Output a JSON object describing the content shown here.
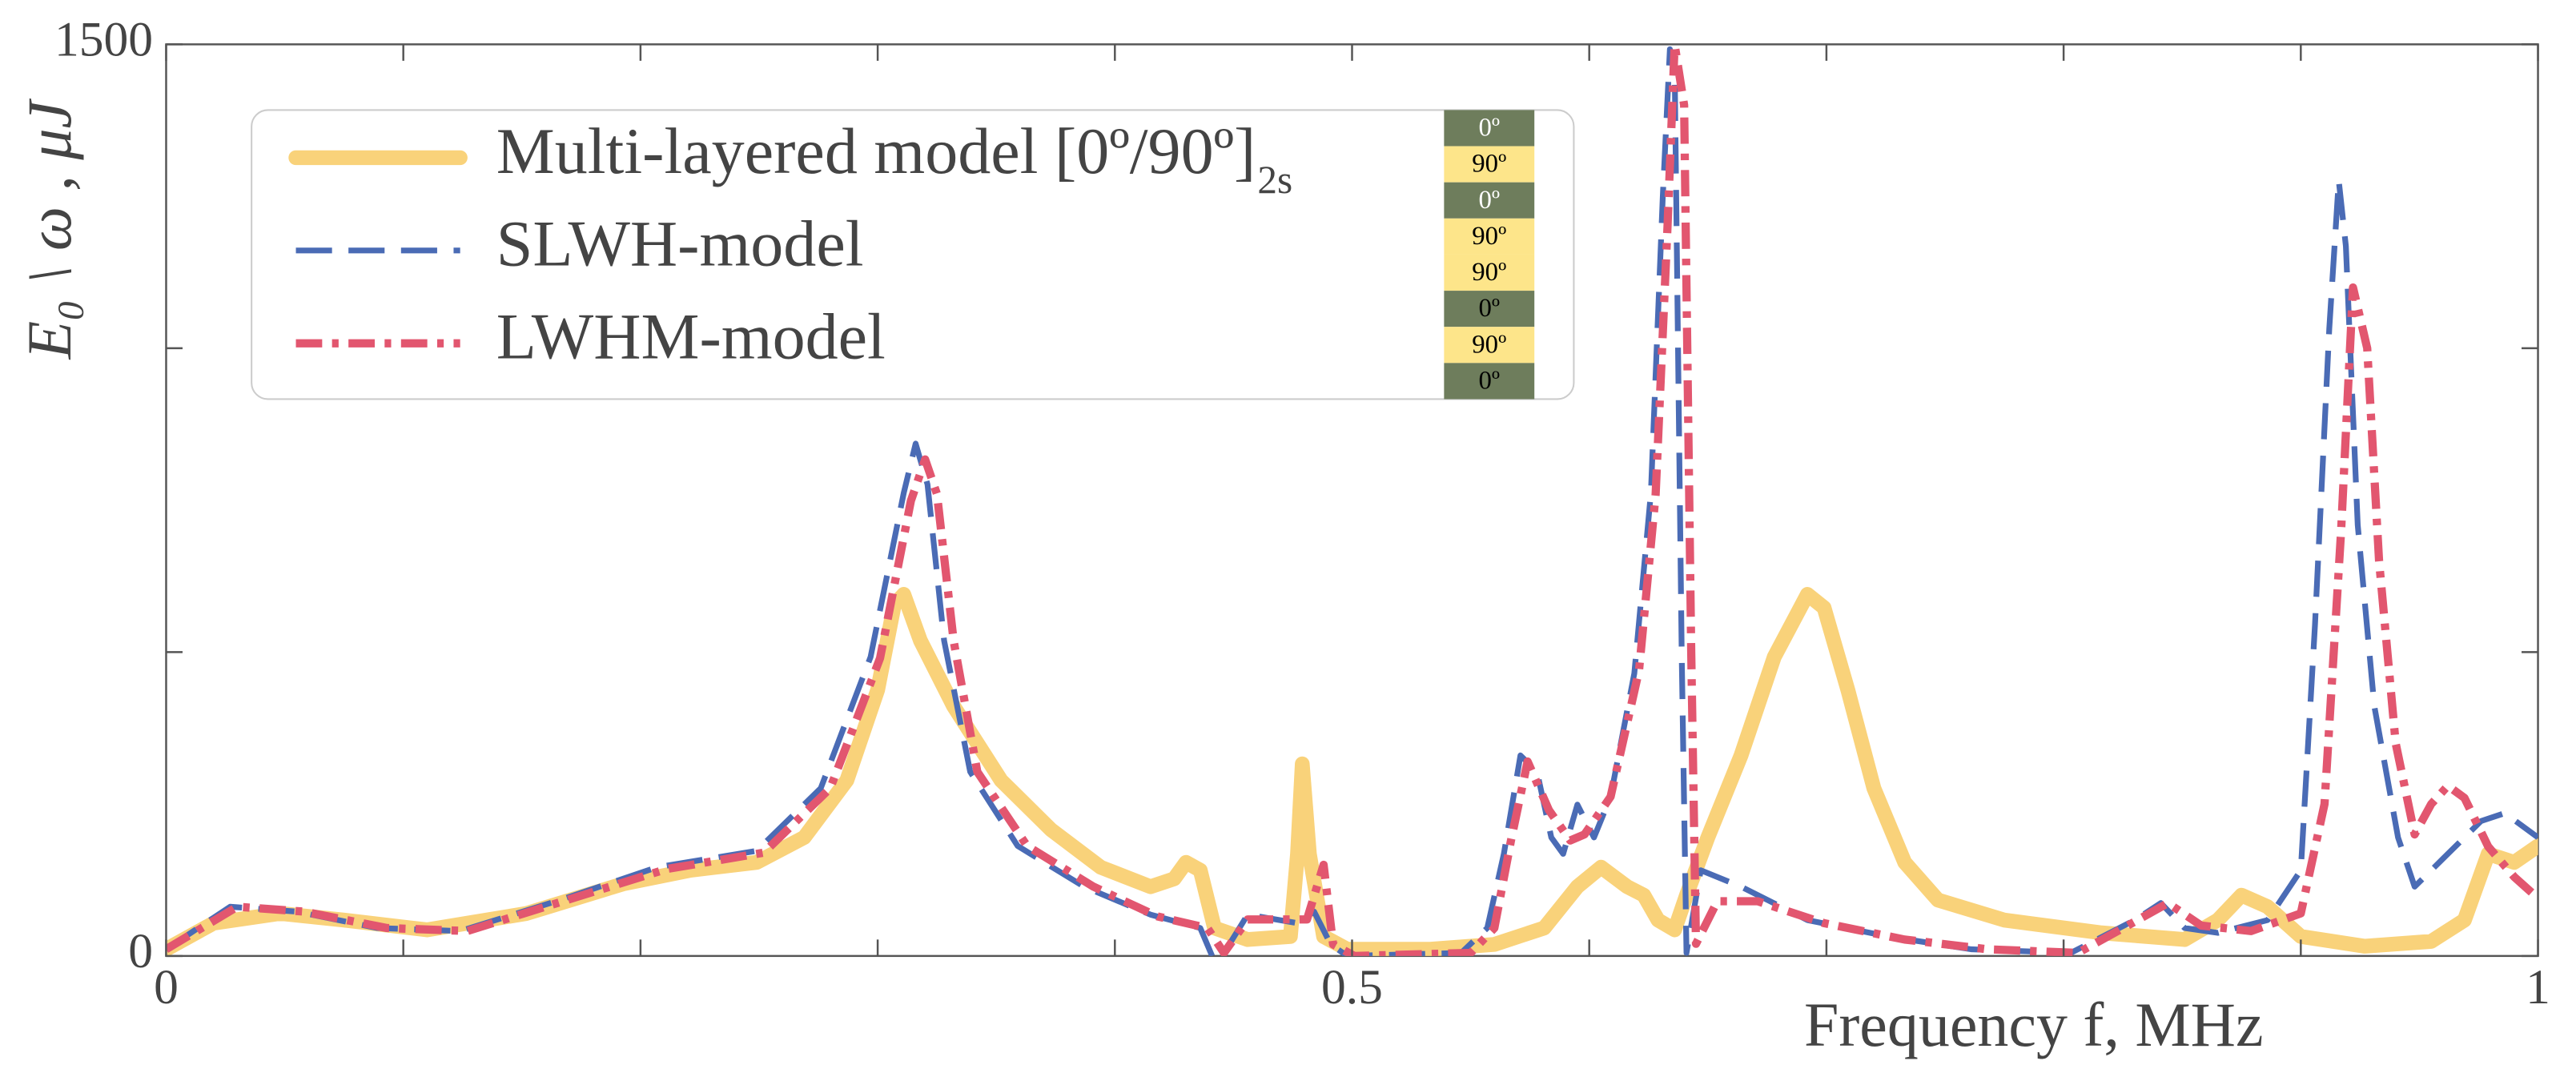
{
  "chart_data": {
    "type": "line",
    "ylabel": "E₀ \\ ω , μJ",
    "xlabel": "Frequency  f, MHz",
    "xlim": [
      0,
      1
    ],
    "xticks": [
      0,
      0.5,
      1
    ],
    "xminorticks": [
      0.1,
      0.2,
      0.3,
      0.4,
      0.6,
      0.7,
      0.8,
      0.9
    ],
    "ylim": [
      0,
      1500
    ],
    "yticks": [
      0,
      1500
    ],
    "yminorticks": [
      500,
      1000
    ],
    "legend": "upper left",
    "ply_stack": [
      {
        "label": "0º",
        "color": "#6e7d5c"
      },
      {
        "label": "90º",
        "color": "#fde58a"
      },
      {
        "label": "0º",
        "color": "#6e7d5c"
      },
      {
        "label": "90º",
        "color": "#fde58a"
      },
      {
        "label": "90º",
        "color": "#fde58a"
      },
      {
        "label": "0º",
        "color": "#6e7d5c"
      },
      {
        "label": "90º",
        "color": "#fde58a"
      },
      {
        "label": "0º",
        "color": "#6e7d5c"
      }
    ],
    "series": [
      {
        "name": "Multi-layered model [0º/90º]",
        "name_subscript": "2s",
        "color": "#f9d27a",
        "style": "solid",
        "x": [
          0,
          0.02,
          0.048,
          0.075,
          0.11,
          0.152,
          0.193,
          0.221,
          0.249,
          0.269,
          0.287,
          0.3,
          0.307,
          0.311,
          0.318,
          0.332,
          0.352,
          0.373,
          0.394,
          0.415,
          0.425,
          0.43,
          0.436,
          0.442,
          0.456,
          0.474,
          0.477,
          0.479,
          0.482,
          0.488,
          0.498,
          0.533,
          0.56,
          0.581,
          0.595,
          0.605,
          0.616,
          0.623,
          0.629,
          0.636,
          0.641,
          0.65,
          0.664,
          0.678,
          0.692,
          0.699,
          0.709,
          0.72,
          0.733,
          0.747,
          0.775,
          0.816,
          0.851,
          0.865,
          0.875,
          0.886,
          0.9,
          0.927,
          0.955,
          0.969,
          0.979,
          0.99,
          1.0
        ],
        "values": [
          11,
          54,
          70,
          59,
          43,
          70,
          119,
          141,
          154,
          195,
          289,
          438,
          578,
          595,
          519,
          411,
          289,
          208,
          146,
          114,
          127,
          154,
          141,
          46,
          27,
          32,
          168,
          316,
          168,
          32,
          11,
          11,
          19,
          46,
          114,
          146,
          114,
          100,
          59,
          43,
          100,
          195,
          330,
          492,
          595,
          573,
          438,
          276,
          154,
          92,
          59,
          38,
          27,
          59,
          100,
          81,
          32,
          16,
          24,
          59,
          168,
          154,
          181
        ]
      },
      {
        "name": "SLWH-model",
        "color": "#4a6bb5",
        "style": "dashed",
        "x": [
          0,
          0.027,
          0.055,
          0.089,
          0.124,
          0.166,
          0.207,
          0.249,
          0.276,
          0.297,
          0.311,
          0.316,
          0.321,
          0.328,
          0.339,
          0.359,
          0.387,
          0.415,
          0.436,
          0.441,
          0.446,
          0.456,
          0.477,
          0.484,
          0.491,
          0.498,
          0.546,
          0.557,
          0.564,
          0.571,
          0.578,
          0.584,
          0.589,
          0.595,
          0.602,
          0.609,
          0.619,
          0.626,
          0.631,
          0.634,
          0.636,
          0.639,
          0.641,
          0.647,
          0.664,
          0.692,
          0.726,
          0.761,
          0.803,
          0.83,
          0.841,
          0.851,
          0.865,
          0.886,
          0.9,
          0.906,
          0.912,
          0.916,
          0.919,
          0.924,
          0.931,
          0.941,
          0.948,
          0.962,
          0.976,
          0.986,
          1.0
        ],
        "values": [
          11,
          81,
          73,
          46,
          41,
          92,
          146,
          173,
          276,
          492,
          762,
          843,
          776,
          519,
          303,
          181,
          114,
          68,
          46,
          0,
          5,
          68,
          54,
          73,
          19,
          0,
          5,
          46,
          168,
          330,
          303,
          195,
          168,
          249,
          195,
          262,
          465,
          762,
          1249,
          1492,
          1465,
          492,
          5,
          141,
          114,
          59,
          32,
          11,
          5,
          59,
          87,
          46,
          38,
          59,
          141,
          546,
          1032,
          1276,
          1168,
          709,
          411,
          195,
          114,
          168,
          222,
          235,
          195
        ]
      },
      {
        "name": "LWHM-model",
        "color": "#e2566f",
        "style": "dashdot",
        "x": [
          0,
          0.03,
          0.058,
          0.093,
          0.127,
          0.169,
          0.211,
          0.252,
          0.28,
          0.301,
          0.314,
          0.32,
          0.325,
          0.332,
          0.342,
          0.363,
          0.391,
          0.418,
          0.439,
          0.446,
          0.456,
          0.481,
          0.488,
          0.492,
          0.501,
          0.55,
          0.56,
          0.567,
          0.574,
          0.583,
          0.592,
          0.598,
          0.609,
          0.621,
          0.628,
          0.633,
          0.636,
          0.64,
          0.643,
          0.645,
          0.654,
          0.671,
          0.699,
          0.733,
          0.768,
          0.806,
          0.827,
          0.844,
          0.858,
          0.879,
          0.9,
          0.91,
          0.917,
          0.922,
          0.928,
          0.933,
          0.94,
          0.948,
          0.955,
          0.962,
          0.969,
          0.979,
          0.99,
          1.0
        ],
        "values": [
          11,
          81,
          73,
          46,
          41,
          92,
          143,
          170,
          276,
          490,
          749,
          817,
          760,
          519,
          303,
          181,
          114,
          65,
          46,
          5,
          60,
          60,
          150,
          19,
          0,
          5,
          46,
          190,
          320,
          240,
          190,
          200,
          262,
          470,
          760,
          1200,
          1500,
          1400,
          500,
          20,
          90,
          90,
          54,
          27,
          11,
          5,
          50,
          87,
          50,
          41,
          70,
          250,
          700,
          1100,
          1000,
          650,
          350,
          200,
          250,
          280,
          260,
          180,
          130,
          95
        ]
      }
    ]
  }
}
